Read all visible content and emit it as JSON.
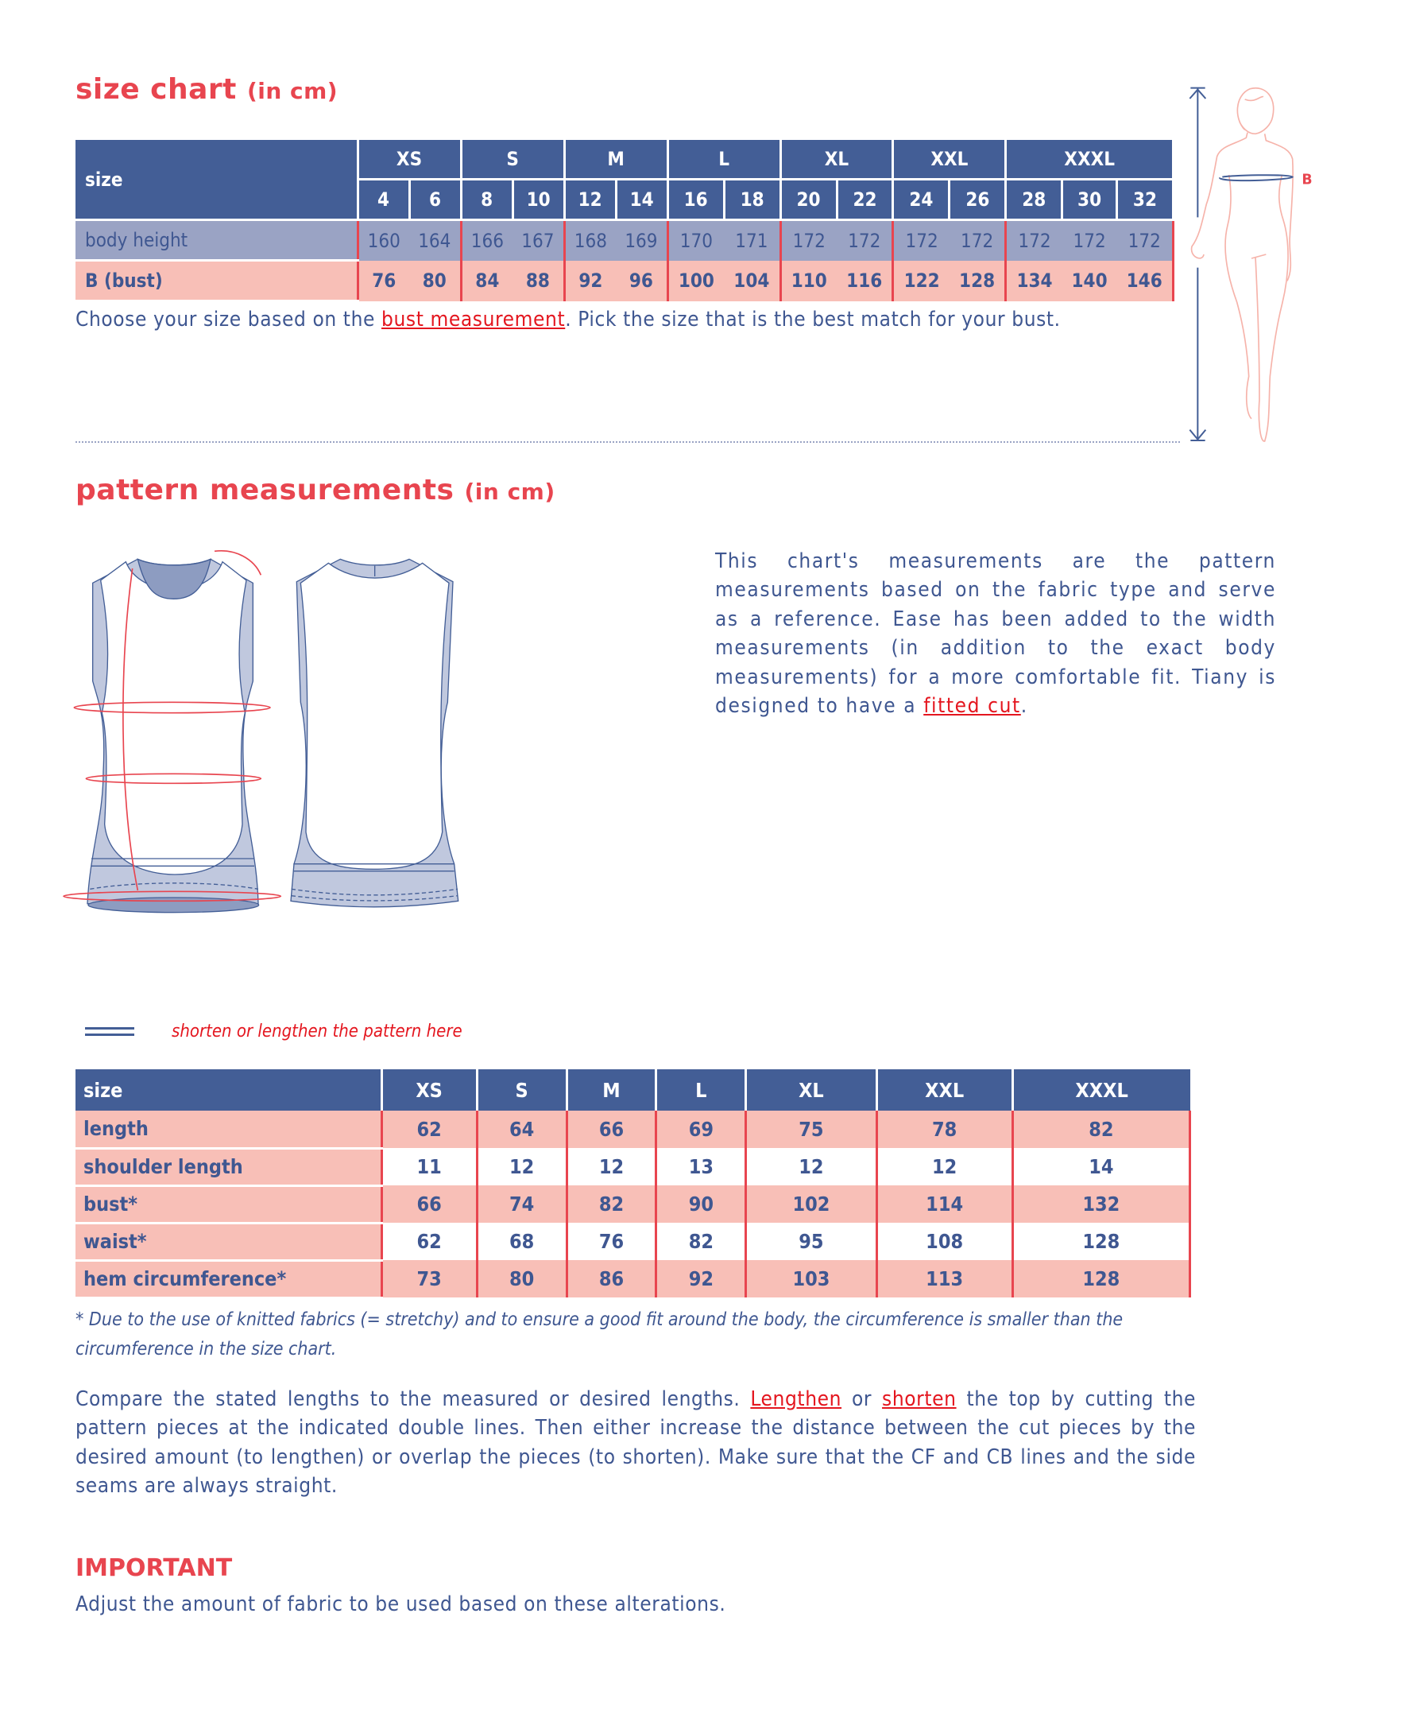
{
  "size_chart": {
    "title": "size chart",
    "unit": "(in cm)",
    "label_header": "size",
    "groups": [
      "XS",
      "S",
      "M",
      "L",
      "XL",
      "XXL",
      "XXXL"
    ],
    "group_spans": [
      2,
      2,
      2,
      2,
      2,
      2,
      3
    ],
    "sizes": [
      "4",
      "6",
      "8",
      "10",
      "12",
      "14",
      "16",
      "18",
      "20",
      "22",
      "24",
      "26",
      "28",
      "30",
      "32"
    ],
    "rows": [
      {
        "label_bold": "",
        "label": "body height",
        "values": [
          "160",
          "164",
          "166",
          "167",
          "168",
          "169",
          "170",
          "171",
          "172",
          "172",
          "172",
          "172",
          "172",
          "172",
          "172"
        ]
      },
      {
        "label_bold": "B",
        "label": "(bust)",
        "values": [
          "76",
          "80",
          "84",
          "88",
          "92",
          "96",
          "100",
          "104",
          "110",
          "116",
          "122",
          "128",
          "134",
          "140",
          "146"
        ]
      }
    ],
    "note_before": "Choose your size based on the ",
    "note_link": "bust measurement",
    "note_after": ". Pick the size that is the best match for your bust.",
    "figure_label": "B"
  },
  "pattern": {
    "title": "pattern measurements",
    "unit": "(in cm)",
    "description_before": "This chart's measurements are the pattern measurements based on the fabric type and serve as a reference. Ease has been added to the width measurements (in addition to the exact body measurements) for a more comfortable fit. Tiany is designed to have a ",
    "description_link": "fitted cut",
    "description_after": ".",
    "legend_text": "shorten or lengthen the pattern here",
    "table": {
      "label_header": "size",
      "columns": [
        "XS",
        "S",
        "M",
        "L",
        "XL",
        "XXL",
        "XXXL"
      ],
      "rows": [
        {
          "label": "length",
          "values": [
            "62",
            "64",
            "66",
            "69",
            "75",
            "78",
            "82"
          ]
        },
        {
          "label": "shoulder length",
          "values": [
            "11",
            "12",
            "12",
            "13",
            "12",
            "12",
            "14"
          ]
        },
        {
          "label": "bust*",
          "values": [
            "66",
            "74",
            "82",
            "90",
            "102",
            "114",
            "132"
          ]
        },
        {
          "label": "waist*",
          "values": [
            "62",
            "68",
            "76",
            "82",
            "95",
            "108",
            "128"
          ]
        },
        {
          "label": "hem circumference*",
          "values": [
            "73",
            "80",
            "86",
            "92",
            "103",
            "113",
            "128"
          ]
        }
      ]
    },
    "footnote": "* Due to the use of knitted fabrics (= stretchy) and to ensure a good fit around the body, the circumference is smaller than the circumference in the size chart.",
    "instructions_1": "Compare the stated lengths to the measured or desired lengths. ",
    "instructions_link1": "Lengthen",
    "instructions_2": " or ",
    "instructions_link2": "shorten",
    "instructions_3": " the top by cutting the pattern pieces at the indicated double lines. Then either increase the distance between the cut pieces by the desired amount (to lengthen) or overlap the pieces (to shorten). Make sure that the CF and CB lines and the side seams are always straight.",
    "important_heading": "IMPORTANT",
    "important_text": "Adjust the amount of fabric to be used based on these alterations."
  },
  "colors": {
    "navy": "#435e96",
    "pale_navy": "#9aa3c4",
    "pink": "#f8bfb7",
    "red": "#e8454f",
    "text": "#3f5791"
  }
}
